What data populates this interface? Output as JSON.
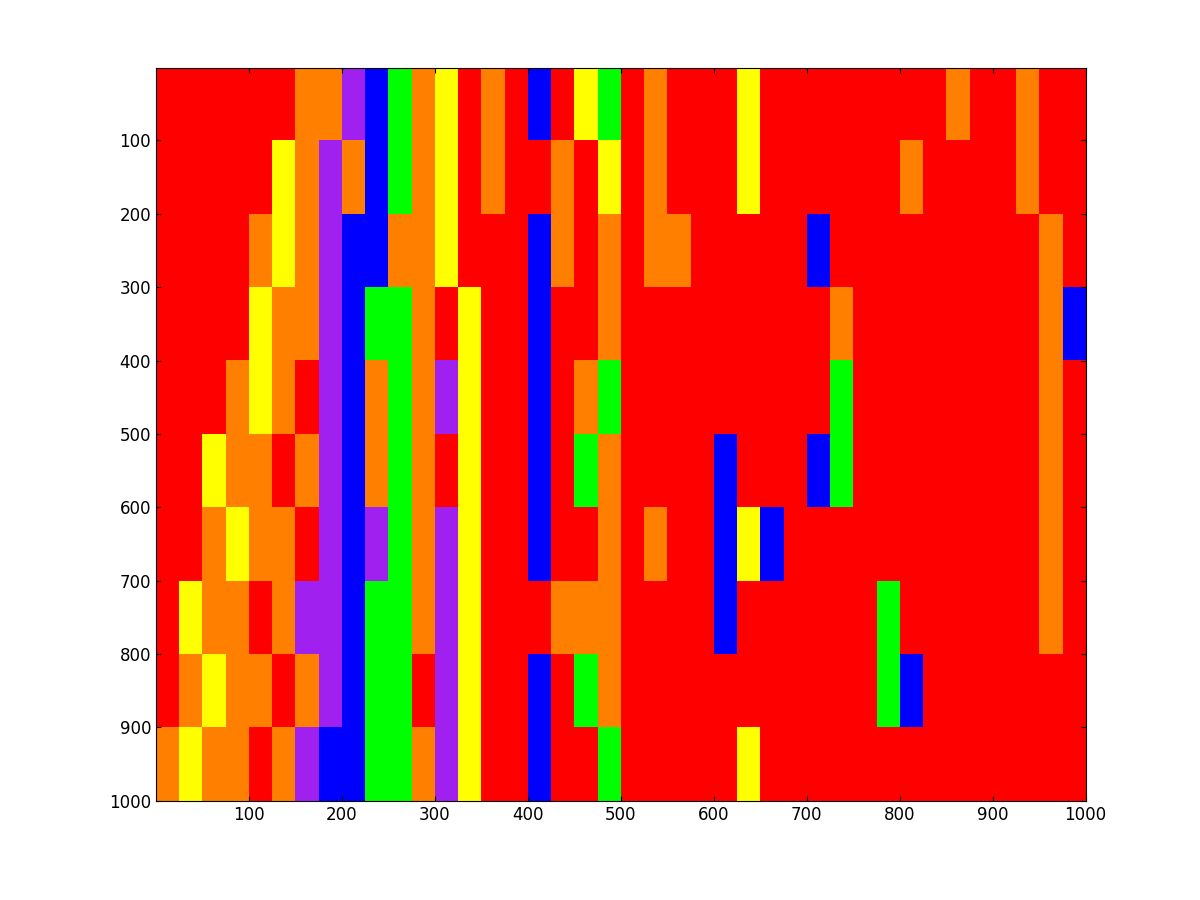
{
  "chart_data": {
    "type": "heatmap",
    "xlim": [
      0.5,
      1000.5
    ],
    "ylim": [
      1000.5,
      0.5
    ],
    "xticks": [
      100,
      200,
      300,
      400,
      500,
      600,
      700,
      800,
      900,
      1000
    ],
    "yticks": [
      100,
      200,
      300,
      400,
      500,
      600,
      700,
      800,
      900,
      1000
    ],
    "colors": [
      "#ff0000",
      "#ff8000",
      "#ffff00",
      "#00ff00",
      "#0000ff",
      "#a020f0"
    ],
    "cells": [
      [
        0,
        0,
        0,
        0,
        0,
        0,
        1,
        1,
        5,
        4,
        3,
        1,
        2,
        0,
        1,
        0,
        4,
        0,
        2,
        3,
        0,
        1,
        0,
        0,
        0,
        2,
        0,
        0,
        0,
        0,
        0,
        0,
        0,
        0,
        1,
        0,
        0,
        1,
        0,
        0
      ],
      [
        0,
        0,
        0,
        0,
        0,
        2,
        1,
        5,
        1,
        4,
        3,
        1,
        2,
        0,
        1,
        0,
        0,
        1,
        0,
        2,
        0,
        1,
        0,
        0,
        0,
        2,
        0,
        0,
        0,
        0,
        0,
        0,
        1,
        0,
        0,
        0,
        0,
        1,
        0,
        0
      ],
      [
        0,
        0,
        0,
        0,
        1,
        2,
        1,
        5,
        4,
        4,
        1,
        1,
        2,
        0,
        0,
        0,
        4,
        1,
        0,
        1,
        0,
        1,
        1,
        0,
        0,
        0,
        0,
        0,
        4,
        0,
        0,
        0,
        0,
        0,
        0,
        0,
        0,
        0,
        1,
        0
      ],
      [
        0,
        0,
        0,
        0,
        2,
        1,
        1,
        5,
        4,
        3,
        3,
        1,
        0,
        2,
        0,
        0,
        4,
        0,
        0,
        1,
        0,
        0,
        0,
        0,
        0,
        0,
        0,
        0,
        0,
        1,
        0,
        0,
        0,
        0,
        0,
        0,
        0,
        0,
        1,
        4
      ],
      [
        0,
        0,
        0,
        1,
        2,
        1,
        0,
        5,
        4,
        1,
        3,
        1,
        5,
        2,
        0,
        0,
        4,
        0,
        1,
        3,
        0,
        0,
        0,
        0,
        0,
        0,
        0,
        0,
        0,
        3,
        0,
        0,
        0,
        0,
        0,
        0,
        0,
        0,
        1,
        0
      ],
      [
        0,
        0,
        2,
        1,
        1,
        0,
        1,
        5,
        4,
        1,
        3,
        1,
        0,
        2,
        0,
        0,
        4,
        0,
        3,
        1,
        0,
        0,
        0,
        0,
        4,
        0,
        0,
        0,
        4,
        3,
        0,
        0,
        0,
        0,
        0,
        0,
        0,
        0,
        1,
        0
      ],
      [
        0,
        0,
        1,
        2,
        1,
        1,
        0,
        5,
        4,
        5,
        3,
        1,
        5,
        2,
        0,
        0,
        4,
        0,
        0,
        1,
        0,
        1,
        0,
        0,
        4,
        2,
        4,
        0,
        0,
        0,
        0,
        0,
        0,
        0,
        0,
        0,
        0,
        0,
        1,
        0
      ],
      [
        0,
        2,
        1,
        1,
        0,
        1,
        5,
        5,
        4,
        3,
        3,
        1,
        5,
        2,
        0,
        0,
        0,
        1,
        1,
        1,
        0,
        0,
        0,
        0,
        4,
        0,
        0,
        0,
        0,
        0,
        0,
        3,
        0,
        0,
        0,
        0,
        0,
        0,
        1,
        0
      ],
      [
        0,
        1,
        2,
        1,
        1,
        0,
        1,
        5,
        4,
        3,
        3,
        0,
        5,
        2,
        0,
        0,
        4,
        0,
        3,
        1,
        0,
        0,
        0,
        0,
        0,
        0,
        0,
        0,
        0,
        0,
        0,
        3,
        4,
        0,
        0,
        0,
        0,
        0,
        0,
        0
      ],
      [
        1,
        2,
        1,
        1,
        0,
        1,
        5,
        4,
        4,
        3,
        3,
        1,
        5,
        2,
        0,
        0,
        4,
        0,
        0,
        3,
        0,
        0,
        0,
        0,
        0,
        2,
        0,
        0,
        0,
        0,
        0,
        0,
        0,
        0,
        0,
        0,
        0,
        0,
        0,
        0
      ]
    ]
  }
}
